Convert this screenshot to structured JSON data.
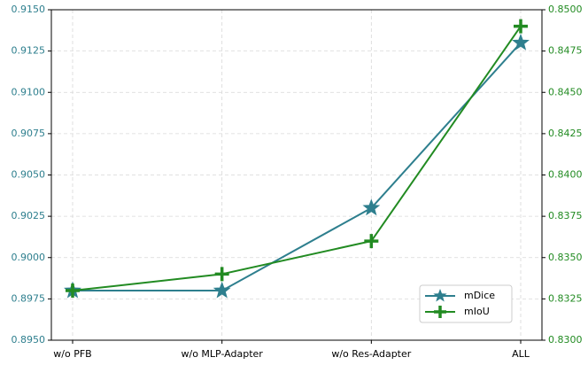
{
  "chart_data": {
    "type": "line",
    "categories": [
      "w/o PFB",
      "w/o MLP-Adapter",
      "w/o Res-Adapter",
      "ALL"
    ],
    "series": [
      {
        "name": "mDice",
        "color": "#2e7f8e",
        "marker": "star",
        "values": [
          0.898,
          0.898,
          0.903,
          0.913
        ]
      },
      {
        "name": "mIoU",
        "color": "#228b22",
        "marker": "plus",
        "axis": "y2",
        "values": [
          0.833,
          0.834,
          0.836,
          0.849
        ]
      }
    ],
    "ylim": [
      0.895,
      0.915
    ],
    "yticks": [
      {
        "value": 0.895,
        "label": "0.8950"
      },
      {
        "value": 0.8975,
        "label": "0.8975"
      },
      {
        "value": 0.9,
        "label": "0.9000"
      },
      {
        "value": 0.9025,
        "label": "0.9025"
      },
      {
        "value": 0.905,
        "label": "0.9050"
      },
      {
        "value": 0.9075,
        "label": "0.9075"
      },
      {
        "value": 0.91,
        "label": "0.9100"
      },
      {
        "value": 0.9125,
        "label": "0.9125"
      },
      {
        "value": 0.915,
        "label": "0.9150"
      }
    ],
    "y2lim": [
      0.83,
      0.85
    ],
    "y2ticks": [
      {
        "value": 0.83,
        "label": "0.8300"
      },
      {
        "value": 0.8325,
        "label": "0.8325"
      },
      {
        "value": 0.835,
        "label": "0.8350"
      },
      {
        "value": 0.8375,
        "label": "0.8375"
      },
      {
        "value": 0.84,
        "label": "0.8400"
      },
      {
        "value": 0.8425,
        "label": "0.8425"
      },
      {
        "value": 0.845,
        "label": "0.8450"
      },
      {
        "value": 0.8475,
        "label": "0.8475"
      },
      {
        "value": 0.85,
        "label": "0.8500"
      }
    ],
    "grid": true,
    "legend": "lower right"
  }
}
